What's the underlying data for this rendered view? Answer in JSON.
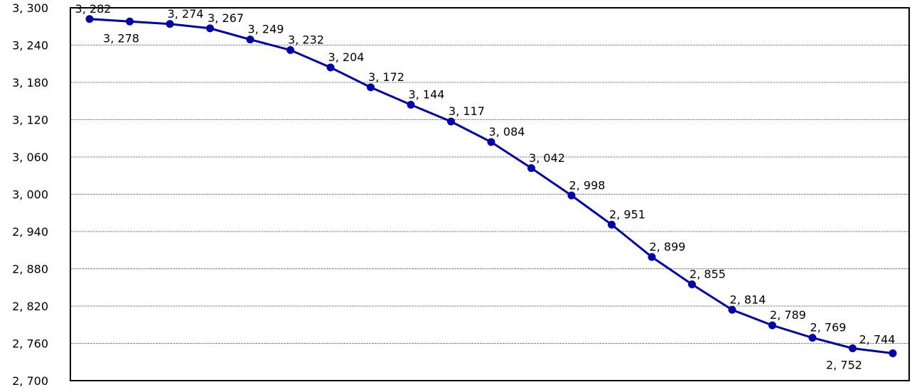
{
  "chart_data": {
    "type": "line",
    "title": "",
    "xlabel": "",
    "ylabel": "",
    "ylim": [
      2700,
      3300
    ],
    "y_ticks": [
      "2, 700",
      "2, 760",
      "2, 820",
      "2, 880",
      "2, 940",
      "3, 000",
      "3, 060",
      "3, 120",
      "3, 180",
      "3, 240",
      "3, 300"
    ],
    "y_tick_values": [
      2700,
      2760,
      2820,
      2880,
      2940,
      3000,
      3060,
      3120,
      3180,
      3240,
      3300
    ],
    "grid": true,
    "legend": "none",
    "series": [
      {
        "values": [
          3282,
          3278,
          3274,
          3267,
          3249,
          3232,
          3204,
          3172,
          3144,
          3117,
          3084,
          3042,
          2998,
          2951,
          2899,
          2855,
          2814,
          2789,
          2769,
          2752,
          2744
        ],
        "labels": [
          "3, 282",
          "3, 278",
          "3, 274",
          "3, 267",
          "3, 249",
          "3, 232",
          "3, 204",
          "3, 172",
          "3, 144",
          "3, 117",
          "3, 084",
          "3, 042",
          "2, 998",
          "2, 951",
          "2, 899",
          "2, 855",
          "2, 814",
          "2, 789",
          "2, 769",
          "2, 752",
          "2, 744"
        ],
        "color": "#0000a8"
      }
    ]
  }
}
